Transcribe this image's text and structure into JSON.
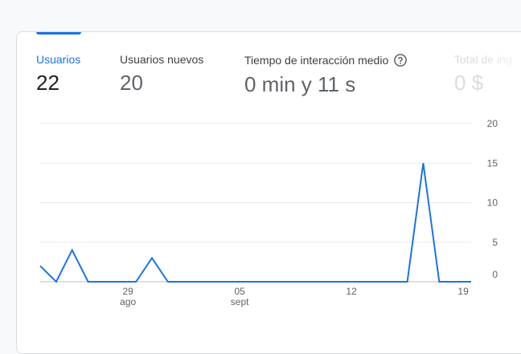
{
  "tabs": [
    {
      "label": "Usuarios",
      "value": "22"
    },
    {
      "label": "Usuarios nuevos",
      "value": "20"
    },
    {
      "label": "Tiempo de interacción medio",
      "value": "0 min y 11 s",
      "help_icon": "help-circle-icon"
    },
    {
      "label": "Total de ing",
      "value": "0 $"
    }
  ],
  "colors": {
    "accent": "#1a73e8",
    "line": "#1a73e8",
    "grid": "#e8eaed"
  },
  "chart_data": {
    "type": "line",
    "title": "",
    "xlabel": "",
    "ylabel": "",
    "ylim": [
      0,
      20
    ],
    "y_ticks": [
      "0",
      "5",
      "10",
      "15",
      "20"
    ],
    "x_ticks": [
      {
        "label": "29",
        "sublabel": "ago",
        "index": 5.5
      },
      {
        "label": "05",
        "sublabel": "sept",
        "index": 12.5
      },
      {
        "label": "12",
        "sublabel": "",
        "index": 19.5
      },
      {
        "label": "19",
        "sublabel": "",
        "index": 26.5
      }
    ],
    "series": [
      {
        "name": "Usuarios",
        "values": [
          2,
          0,
          4,
          0,
          0,
          0,
          0,
          3,
          0,
          0,
          0,
          0,
          0,
          0,
          0,
          0,
          0,
          0,
          0,
          0,
          0,
          0,
          0,
          0,
          15,
          0,
          0,
          0
        ]
      }
    ]
  }
}
